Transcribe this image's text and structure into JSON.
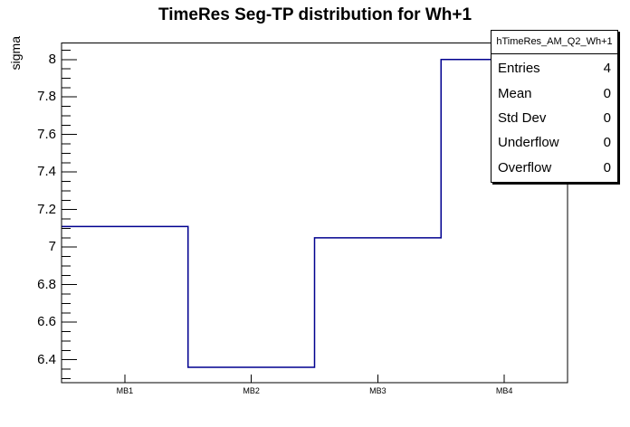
{
  "chart_data": {
    "type": "step-histogram",
    "title": "TimeRes Seg-TP distribution for Wh+1",
    "ylabel": "sigma",
    "xlabel": "",
    "categories": [
      "MB1",
      "MB2",
      "MB3",
      "MB4"
    ],
    "values": [
      7.11,
      6.36,
      7.05,
      8.0
    ],
    "ylim": [
      6.278,
      8.088
    ],
    "y_major_ticks": [
      {
        "value": 6.4,
        "label": "6.4"
      },
      {
        "value": 6.6,
        "label": "6.6"
      },
      {
        "value": 6.8,
        "label": "6.8"
      },
      {
        "value": 7.0,
        "label": "7"
      },
      {
        "value": 7.2,
        "label": "7.2"
      },
      {
        "value": 7.4,
        "label": "7.4"
      },
      {
        "value": 7.6,
        "label": "7.6"
      },
      {
        "value": 7.8,
        "label": "7.8"
      },
      {
        "value": 8.0,
        "label": "8"
      }
    ],
    "y_minor_step": 0.05,
    "grid": false,
    "legend_position": "top-right",
    "line_color": "#00008f",
    "frame_color": "#000000",
    "background_color": "#ffffff"
  },
  "stats_box": {
    "title": "hTimeRes_AM_Q2_Wh+1",
    "rows": [
      {
        "label": "Entries",
        "value": "4"
      },
      {
        "label": "Mean",
        "value": "0"
      },
      {
        "label": "Std Dev",
        "value": "0"
      },
      {
        "label": "Underflow",
        "value": "0"
      },
      {
        "label": "Overflow",
        "value": "0"
      }
    ]
  }
}
